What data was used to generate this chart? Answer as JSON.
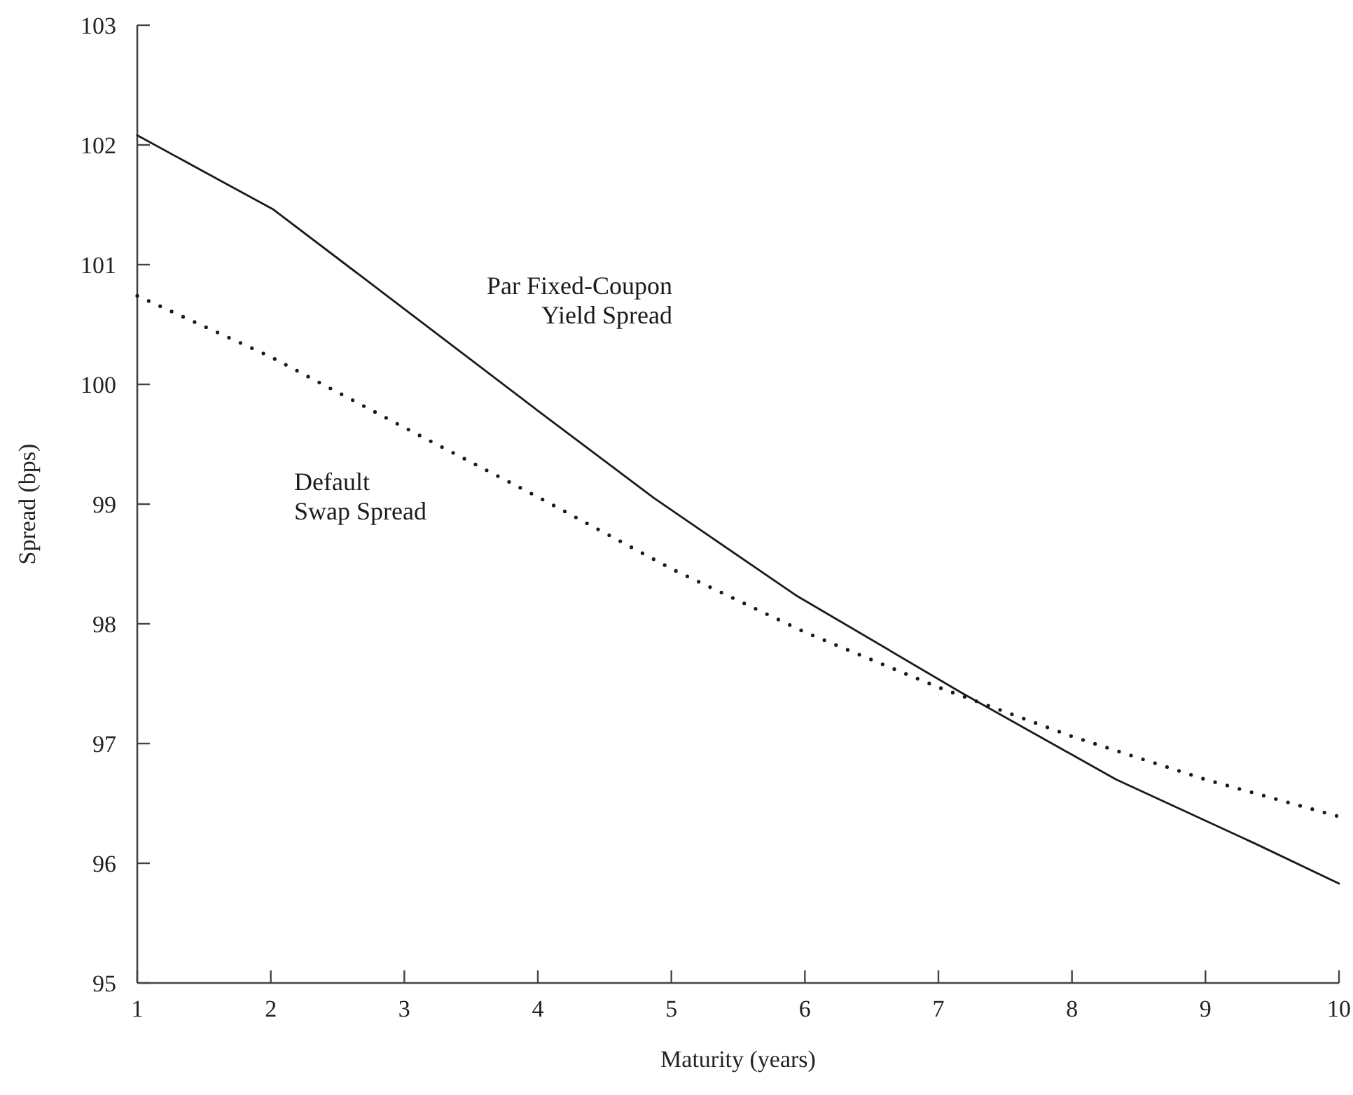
{
  "chart_data": {
    "type": "line",
    "xlabel": "Maturity (years)",
    "ylabel": "Spread (bps)",
    "xlim": [
      1,
      10
    ],
    "ylim": [
      95,
      103
    ],
    "xticks": [
      1,
      2,
      3,
      4,
      5,
      6,
      7,
      8,
      9,
      10
    ],
    "yticks": [
      95,
      96,
      97,
      98,
      99,
      100,
      101,
      102,
      103
    ],
    "grid": false,
    "legend": false,
    "marker": "none",
    "series": [
      {
        "name": "Par Fixed-Coupon\nYield Spread",
        "color": "#1a1a1a",
        "line_style": "solid",
        "x": [
          1,
          2.02,
          3,
          4,
          4.87,
          5.93,
          7.18,
          8.33,
          9.38,
          10
        ],
        "values": [
          102.08,
          101.46,
          100.63,
          99.78,
          99.05,
          98.24,
          97.42,
          96.7,
          96.16,
          95.83
        ]
      },
      {
        "name": "Default\nSwap Spread",
        "color": "#1a1a1a",
        "line_style": "dotted",
        "x": [
          1,
          2,
          3,
          4,
          5,
          6,
          7,
          8,
          9,
          10
        ],
        "values": [
          100.74,
          100.23,
          99.64,
          99.06,
          98.46,
          97.93,
          97.47,
          97.06,
          96.7,
          96.39
        ]
      }
    ]
  }
}
